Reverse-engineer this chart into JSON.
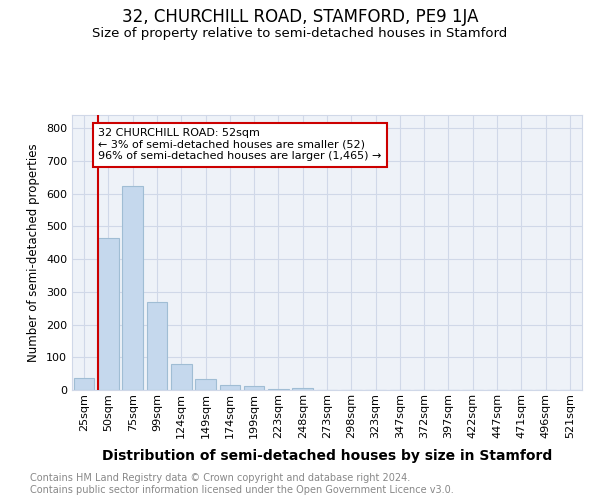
{
  "title": "32, CHURCHILL ROAD, STAMFORD, PE9 1JA",
  "subtitle": "Size of property relative to semi-detached houses in Stamford",
  "xlabel": "Distribution of semi-detached houses by size in Stamford",
  "ylabel": "Number of semi-detached properties",
  "categories": [
    "25sqm",
    "50sqm",
    "75sqm",
    "99sqm",
    "124sqm",
    "149sqm",
    "174sqm",
    "199sqm",
    "223sqm",
    "248sqm",
    "273sqm",
    "298sqm",
    "323sqm",
    "347sqm",
    "372sqm",
    "397sqm",
    "422sqm",
    "447sqm",
    "471sqm",
    "496sqm",
    "521sqm"
  ],
  "values": [
    38,
    465,
    622,
    268,
    80,
    35,
    15,
    12,
    2,
    5,
    0,
    0,
    0,
    0,
    0,
    0,
    0,
    0,
    0,
    0,
    0
  ],
  "bar_color": "#c5d8ed",
  "bar_edgecolor": "#a0bdd4",
  "annotation_text_line1": "32 CHURCHILL ROAD: 52sqm",
  "annotation_text_line2": "← 3% of semi-detached houses are smaller (52)",
  "annotation_text_line3": "96% of semi-detached houses are larger (1,465) →",
  "annotation_box_color": "#ffffff",
  "annotation_box_edgecolor": "#cc0000",
  "property_line_color": "#cc0000",
  "ylim": [
    0,
    840
  ],
  "yticks": [
    0,
    100,
    200,
    300,
    400,
    500,
    600,
    700,
    800
  ],
  "grid_color": "#d0d8e8",
  "plot_bg_color": "#eef2f8",
  "footer": "Contains HM Land Registry data © Crown copyright and database right 2024.\nContains public sector information licensed under the Open Government Licence v3.0.",
  "title_fontsize": 12,
  "subtitle_fontsize": 9.5,
  "xlabel_fontsize": 10,
  "ylabel_fontsize": 8.5,
  "tick_fontsize": 8,
  "annotation_fontsize": 8,
  "footer_fontsize": 7,
  "background_color": "#ffffff"
}
